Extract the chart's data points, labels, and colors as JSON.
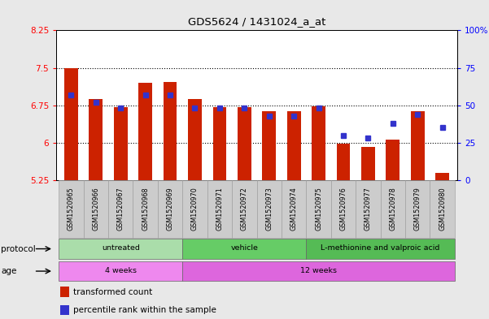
{
  "title": "GDS5624 / 1431024_a_at",
  "samples": [
    "GSM1520965",
    "GSM1520966",
    "GSM1520967",
    "GSM1520968",
    "GSM1520969",
    "GSM1520970",
    "GSM1520971",
    "GSM1520972",
    "GSM1520973",
    "GSM1520974",
    "GSM1520975",
    "GSM1520976",
    "GSM1520977",
    "GSM1520978",
    "GSM1520979",
    "GSM1520980"
  ],
  "bar_values": [
    7.5,
    6.87,
    6.72,
    7.2,
    7.22,
    6.87,
    6.72,
    6.72,
    6.63,
    6.63,
    6.73,
    5.98,
    5.92,
    6.07,
    6.63,
    5.4
  ],
  "bar_base": 5.25,
  "blue_pct": [
    57,
    52,
    48,
    57,
    57,
    48,
    48,
    48,
    43,
    43,
    48,
    30,
    28,
    38,
    44,
    35
  ],
  "ylim_left": [
    5.25,
    8.25
  ],
  "ylim_right": [
    0,
    100
  ],
  "yticks_left": [
    5.25,
    6.0,
    6.75,
    7.5,
    8.25
  ],
  "yticks_right": [
    0,
    25,
    50,
    75,
    100
  ],
  "ytick_labels_left": [
    "5.25",
    "6",
    "6.75",
    "7.5",
    "8.25"
  ],
  "ytick_labels_right": [
    "0",
    "25",
    "50",
    "75",
    "100%"
  ],
  "hlines": [
    6.0,
    6.75,
    7.5
  ],
  "bar_color": "#cc2200",
  "blue_color": "#3333cc",
  "protocol_groups": [
    {
      "label": "untreated",
      "start": 0,
      "end": 5,
      "color": "#aaddaa"
    },
    {
      "label": "vehicle",
      "start": 5,
      "end": 10,
      "color": "#66cc66"
    },
    {
      "label": "L-methionine and valproic acid",
      "start": 10,
      "end": 16,
      "color": "#55bb55"
    }
  ],
  "age_groups": [
    {
      "label": "4 weeks",
      "start": 0,
      "end": 5,
      "color": "#ee88ee"
    },
    {
      "label": "12 weeks",
      "start": 5,
      "end": 16,
      "color": "#dd66dd"
    }
  ],
  "protocol_label": "protocol",
  "age_label": "age",
  "legend_items": [
    {
      "label": "transformed count",
      "color": "#cc2200"
    },
    {
      "label": "percentile rank within the sample",
      "color": "#3333cc"
    }
  ],
  "bg_color": "#e8e8e8",
  "plot_bg": "#ffffff",
  "xlabel_bg": "#cccccc"
}
